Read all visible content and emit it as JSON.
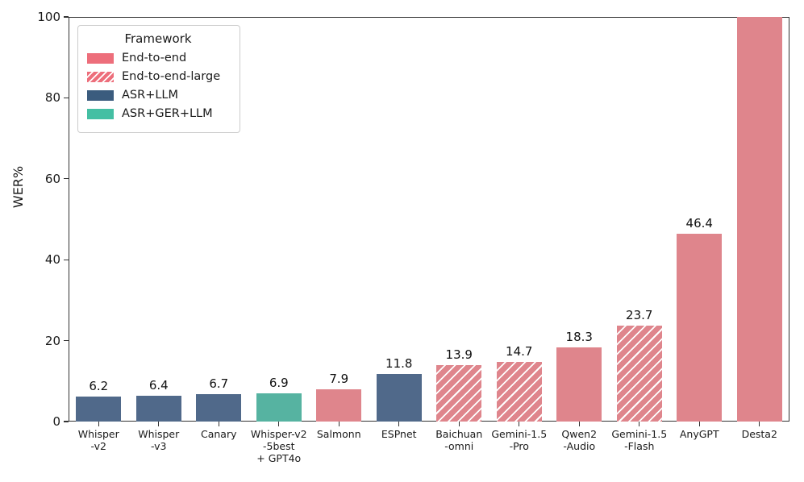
{
  "chart_data": {
    "type": "bar",
    "title": "",
    "xlabel": "",
    "ylabel": "WER%",
    "ylim": [
      0,
      100
    ],
    "yticks": [
      0,
      20,
      40,
      60,
      80,
      100
    ],
    "grid": false,
    "legend": {
      "title": "Framework",
      "position": "upper-left",
      "entries": [
        {
          "label": "End-to-end",
          "color": "#ed6e7b",
          "hatch": false
        },
        {
          "label": "End-to-end-large",
          "color": "#ed6e7b",
          "hatch": true
        },
        {
          "label": "ASR+LLM",
          "color": "#3b5c7e",
          "hatch": false
        },
        {
          "label": "ASR+GER+LLM",
          "color": "#44bfa3",
          "hatch": false
        }
      ]
    },
    "bar_colors": {
      "End-to-end": "#df858c",
      "End-to-end-large": "#df858c",
      "ASR+LLM": "#50698a",
      "ASR+GER+LLM": "#56b3a1"
    },
    "bars": [
      {
        "category": "Whisper\n-v2",
        "value": 6.2,
        "label": "6.2",
        "framework": "ASR+LLM",
        "hatch": false
      },
      {
        "category": "Whisper\n-v3",
        "value": 6.4,
        "label": "6.4",
        "framework": "ASR+LLM",
        "hatch": false
      },
      {
        "category": "Canary",
        "value": 6.7,
        "label": "6.7",
        "framework": "ASR+LLM",
        "hatch": false
      },
      {
        "category": "Whisper-v2\n-5best\n+ GPT4o",
        "value": 6.9,
        "label": "6.9",
        "framework": "ASR+GER+LLM",
        "hatch": false
      },
      {
        "category": "Salmonn",
        "value": 7.9,
        "label": "7.9",
        "framework": "End-to-end",
        "hatch": false
      },
      {
        "category": "ESPnet",
        "value": 11.8,
        "label": "11.8",
        "framework": "ASR+LLM",
        "hatch": false
      },
      {
        "category": "Baichuan\n-omni",
        "value": 13.9,
        "label": "13.9",
        "framework": "End-to-end-large",
        "hatch": true
      },
      {
        "category": "Gemini-1.5\n-Pro",
        "value": 14.7,
        "label": "14.7",
        "framework": "End-to-end-large",
        "hatch": true
      },
      {
        "category": "Qwen2\n-Audio",
        "value": 18.3,
        "label": "18.3",
        "framework": "End-to-end",
        "hatch": false
      },
      {
        "category": "Gemini-1.5\n-Flash",
        "value": 23.7,
        "label": "23.7",
        "framework": "End-to-end-large",
        "hatch": true
      },
      {
        "category": "AnyGPT",
        "value": 46.4,
        "label": "46.4",
        "framework": "End-to-end",
        "hatch": false
      },
      {
        "category": "Desta2",
        "value": 100,
        "label": "",
        "framework": "End-to-end",
        "hatch": false
      }
    ]
  }
}
